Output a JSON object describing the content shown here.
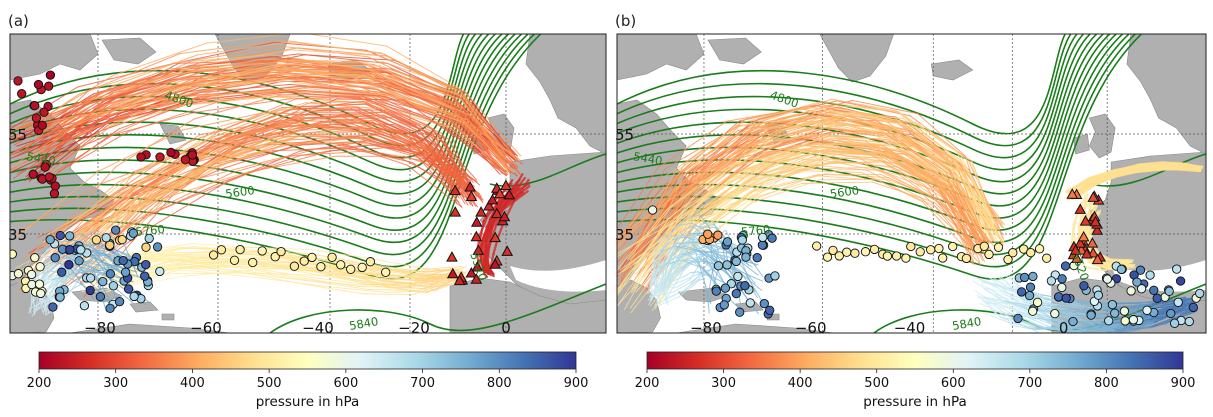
{
  "chart_data": [
    {
      "type": "map-trajectories",
      "panel_label": "(a)",
      "x_ticks": [
        "−80",
        "−60",
        "−40",
        "−20",
        "0"
      ],
      "y_ticks": [
        "55",
        "35"
      ],
      "contour_labels": [
        "4800",
        "5440",
        "5600",
        "5760",
        "5840",
        "5520"
      ],
      "colors": {
        "contour": "#1a7d1a",
        "land": "#b0b0b0",
        "ocean": "#ffffff",
        "marker_edge": "#111111"
      },
      "markers": {
        "start": "circle",
        "end": "triangle"
      }
    },
    {
      "type": "map-trajectories",
      "panel_label": "(b)",
      "x_ticks": [
        "−80",
        "−60",
        "−40",
        "−20",
        "0"
      ],
      "y_ticks": [
        "55",
        "35"
      ],
      "contour_labels": [
        "4800",
        "5440",
        "5600",
        "5760",
        "5840",
        "5520"
      ],
      "colors": {
        "contour": "#1a7d1a",
        "land": "#b0b0b0",
        "ocean": "#ffffff",
        "marker_edge": "#111111"
      },
      "markers": {
        "start": "circle",
        "end": "triangle"
      }
    }
  ],
  "colorbar": {
    "label": "pressure in hPa",
    "range": [
      200,
      900
    ],
    "ticks": [
      "200",
      "300",
      "400",
      "500",
      "600",
      "700",
      "800",
      "900"
    ],
    "colormap": "RdYlBu",
    "stops": [
      "#a50026",
      "#d73027",
      "#f46d43",
      "#fdae61",
      "#fee090",
      "#ffffbf",
      "#e0f3f8",
      "#abd9e9",
      "#74add1",
      "#4575b4",
      "#313695"
    ]
  }
}
